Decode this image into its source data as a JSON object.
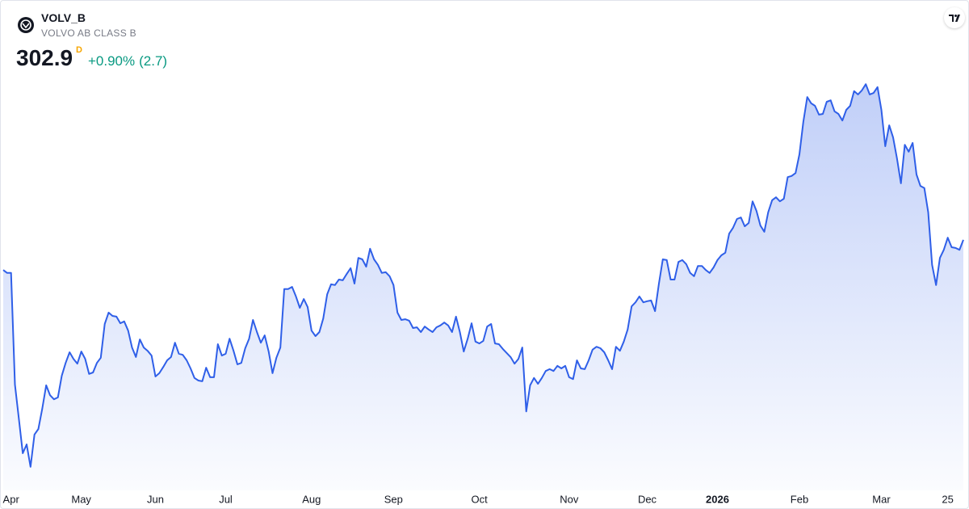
{
  "header": {
    "symbol": "VOLV_B",
    "name": "VOLVO AB CLASS B",
    "price": 302.9,
    "interval": "D",
    "change": "+0.90%",
    "change_abs": "(2.7)"
  },
  "chart_data": {
    "type": "area",
    "color": "#2f5fe8",
    "ylim": [
      236,
      368
    ],
    "categories": [
      null,
      null,
      "Apr",
      null,
      null,
      null,
      null,
      null,
      null,
      null,
      null,
      null,
      null,
      null,
      null,
      null,
      null,
      null,
      null,
      null,
      "May",
      null,
      null,
      null,
      null,
      null,
      null,
      null,
      null,
      null,
      null,
      null,
      null,
      null,
      null,
      null,
      null,
      null,
      null,
      "Jun",
      null,
      null,
      null,
      null,
      null,
      null,
      null,
      null,
      null,
      null,
      null,
      null,
      null,
      null,
      null,
      null,
      null,
      "Jul",
      null,
      null,
      null,
      null,
      null,
      null,
      null,
      null,
      null,
      null,
      null,
      null,
      null,
      null,
      null,
      null,
      null,
      null,
      null,
      null,
      null,
      "Aug",
      null,
      null,
      null,
      null,
      null,
      null,
      null,
      null,
      null,
      null,
      null,
      null,
      null,
      null,
      null,
      null,
      null,
      null,
      null,
      null,
      "Sep",
      null,
      null,
      null,
      null,
      null,
      null,
      null,
      null,
      null,
      null,
      null,
      null,
      null,
      null,
      null,
      null,
      null,
      null,
      null,
      null,
      null,
      "Oct",
      null,
      null,
      null,
      null,
      null,
      null,
      null,
      null,
      null,
      null,
      null,
      null,
      null,
      null,
      null,
      null,
      null,
      null,
      null,
      null,
      null,
      null,
      "Nov",
      null,
      null,
      null,
      null,
      null,
      null,
      null,
      null,
      null,
      null,
      null,
      null,
      null,
      null,
      null,
      null,
      null,
      null,
      null,
      "Dec",
      null,
      null,
      null,
      null,
      null,
      null,
      null,
      null,
      null,
      null,
      null,
      null,
      null,
      null,
      null,
      null,
      null,
      "2026",
      null,
      null,
      null,
      null,
      null,
      null,
      null,
      null,
      null,
      null,
      null,
      null,
      null,
      null,
      null,
      null,
      null,
      null,
      null,
      null,
      "Feb",
      null,
      null,
      null,
      null,
      null,
      null,
      null,
      null,
      null,
      null,
      null,
      null,
      null,
      null,
      null,
      null,
      null,
      null,
      null,
      null,
      "Mar",
      null,
      null,
      null,
      null,
      null,
      null,
      null,
      null,
      null,
      null,
      null,
      null,
      null,
      null,
      null,
      null,
      "25",
      null,
      null,
      null,
      null
    ],
    "values": [
      294.7,
      293.9,
      293.9,
      263.5,
      254.3,
      244.8,
      247.2,
      241.1,
      249.9,
      251.4,
      256.9,
      263.3,
      260.6,
      259.5,
      260.0,
      265.9,
      269.4,
      272.3,
      270.5,
      269.2,
      272.5,
      270.5,
      266.4,
      266.8,
      269.4,
      270.8,
      280.0,
      283.1,
      282.2,
      282.0,
      280.2,
      280.7,
      278.2,
      273.6,
      271.0,
      275.8,
      273.6,
      272.7,
      271.4,
      265.7,
      266.6,
      268.3,
      270.1,
      271.0,
      274.9,
      271.9,
      271.6,
      270.1,
      267.9,
      265.3,
      264.6,
      264.4,
      268.1,
      265.5,
      265.5,
      274.5,
      271.4,
      271.9,
      276.0,
      272.7,
      269.0,
      269.4,
      273.4,
      276.0,
      281.1,
      277.8,
      274.9,
      276.9,
      272.5,
      266.6,
      270.8,
      273.6,
      289.5,
      289.5,
      290.1,
      287.5,
      284.4,
      286.8,
      284.6,
      278.2,
      276.7,
      277.8,
      281.5,
      288.1,
      290.8,
      290.6,
      292.1,
      291.9,
      293.6,
      295.2,
      291.0,
      298.0,
      297.6,
      295.6,
      300.5,
      297.6,
      296.1,
      293.9,
      294.1,
      293.0,
      290.6,
      283.1,
      281.1,
      281.3,
      280.9,
      278.9,
      279.1,
      277.8,
      279.3,
      278.5,
      277.8,
      279.1,
      279.6,
      280.4,
      279.6,
      277.8,
      282.0,
      277.8,
      272.5,
      276.0,
      280.2,
      275.2,
      274.7,
      275.4,
      279.3,
      280.0,
      274.7,
      274.5,
      273.2,
      272.1,
      271.0,
      269.2,
      270.5,
      273.6,
      256.2,
      263.3,
      265.3,
      263.7,
      265.3,
      267.2,
      267.7,
      267.2,
      268.6,
      267.9,
      268.6,
      265.5,
      265.0,
      270.1,
      267.9,
      267.7,
      270.1,
      273.0,
      273.8,
      273.4,
      272.3,
      270.1,
      267.7,
      273.8,
      272.7,
      275.2,
      278.5,
      284.8,
      285.9,
      287.5,
      285.9,
      286.2,
      286.4,
      283.5,
      291.0,
      297.6,
      297.4,
      292.1,
      292.1,
      296.9,
      297.4,
      296.3,
      293.9,
      293.0,
      295.8,
      295.8,
      294.7,
      293.9,
      295.4,
      297.4,
      298.7,
      299.4,
      304.6,
      306.2,
      308.6,
      309.0,
      306.6,
      307.5,
      313.4,
      310.8,
      306.8,
      305.1,
      310.4,
      313.7,
      314.5,
      313.4,
      314.1,
      320.0,
      320.3,
      321.1,
      326.2,
      335.0,
      341.8,
      340.1,
      339.4,
      337.0,
      337.2,
      340.5,
      340.9,
      337.9,
      337.2,
      335.4,
      338.3,
      339.4,
      343.4,
      342.5,
      343.6,
      345.3,
      342.5,
      342.9,
      344.5,
      338.3,
      328.4,
      334.1,
      330.8,
      325.1,
      318.3,
      328.8,
      326.9,
      329.3,
      320.7,
      317.6,
      317.0,
      310.4,
      296.1,
      290.6,
      298.0,
      300.2,
      303.5,
      300.9,
      300.7,
      300.2,
      302.9
    ]
  }
}
